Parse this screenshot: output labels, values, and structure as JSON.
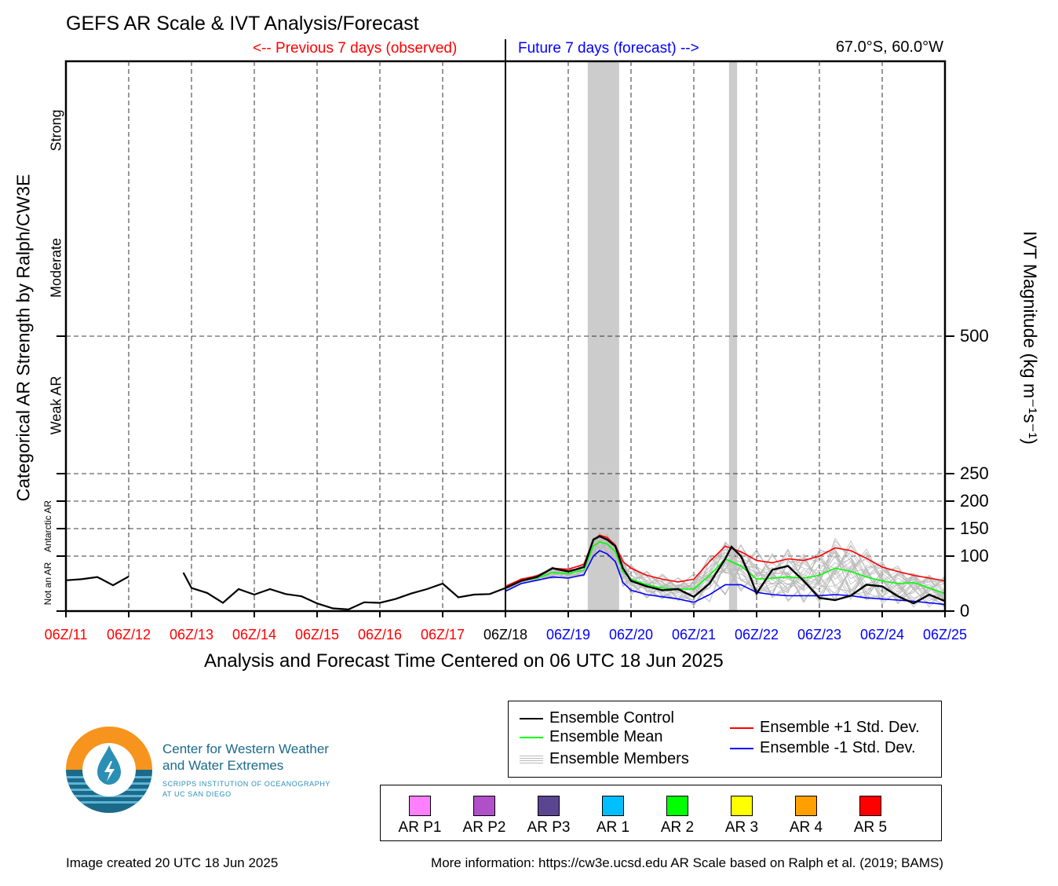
{
  "title": "GEFS AR Scale & IVT Analysis/Forecast",
  "previous_label": "<-- Previous 7 days (observed)",
  "future_label": "Future 7 days (forecast) -->",
  "location": "67.0°S, 60.0°W",
  "colors": {
    "observed": "#ff0000",
    "forecast": "#0000ff",
    "control": "#000000",
    "mean": "#00ff00",
    "plus_std": "#ff0000",
    "minus_std": "#0000ff",
    "members": "#bbbbbb",
    "ar_shading": "#cccccc",
    "brand_orange": "#f7941d",
    "brand_blue": "#1b6a8a"
  },
  "chart_data": {
    "type": "line",
    "xlabel": "Analysis and Forecast Time Centered on 06 UTC 18 Jun 2025",
    "ylabel_left": "Categorical AR Strength by Ralph/CW3E",
    "ylabel_right": "IVT Magnitude (kg m⁻¹s⁻¹)",
    "x_units": "days relative to 06Z/11",
    "xlim": [
      0,
      14
    ],
    "ylim": [
      0,
      1000
    ],
    "grid": true,
    "x_ticks": [
      {
        "label": "06Z/11",
        "x": 0,
        "color": "#ff0000"
      },
      {
        "label": "06Z/12",
        "x": 1,
        "color": "#ff0000"
      },
      {
        "label": "06Z/13",
        "x": 2,
        "color": "#ff0000"
      },
      {
        "label": "06Z/14",
        "x": 3,
        "color": "#ff0000"
      },
      {
        "label": "06Z/15",
        "x": 4,
        "color": "#ff0000"
      },
      {
        "label": "06Z/16",
        "x": 5,
        "color": "#ff0000"
      },
      {
        "label": "06Z/17",
        "x": 6,
        "color": "#ff0000"
      },
      {
        "label": "06Z/18",
        "x": 7,
        "color": "#000000"
      },
      {
        "label": "06Z/19",
        "x": 8,
        "color": "#0000ff"
      },
      {
        "label": "06Z/20",
        "x": 9,
        "color": "#0000ff"
      },
      {
        "label": "06Z/21",
        "x": 10,
        "color": "#0000ff"
      },
      {
        "label": "06Z/22",
        "x": 11,
        "color": "#0000ff"
      },
      {
        "label": "06Z/23",
        "x": 12,
        "color": "#0000ff"
      },
      {
        "label": "06Z/24",
        "x": 13,
        "color": "#0000ff"
      },
      {
        "label": "06Z/25",
        "x": 14,
        "color": "#0000ff"
      }
    ],
    "y_ticks": [
      0,
      100,
      150,
      200,
      250,
      500
    ],
    "categories": [
      {
        "label": "Strong",
        "y": 875,
        "small": false
      },
      {
        "label": "Moderate",
        "y": 625,
        "small": false
      },
      {
        "label": "Weak AR",
        "y": 375,
        "small": false
      },
      {
        "label": "Antarctic AR",
        "y": 155,
        "small": true
      },
      {
        "label": "Not an AR",
        "y": 50,
        "small": true
      }
    ],
    "ar_periods": [
      [
        8.31,
        8.81
      ],
      [
        10.56,
        10.69
      ]
    ],
    "observed": [
      {
        "x": 0.0,
        "y": 56
      },
      {
        "x": 0.25,
        "y": 58
      },
      {
        "x": 0.5,
        "y": 62
      },
      {
        "x": 0.75,
        "y": 47
      },
      {
        "x": 1.0,
        "y": 63
      },
      {
        "x": 1.87,
        "y": 70
      },
      {
        "x": 2.0,
        "y": 42
      },
      {
        "x": 2.25,
        "y": 33
      },
      {
        "x": 2.5,
        "y": 15
      },
      {
        "x": 2.75,
        "y": 40
      },
      {
        "x": 3.0,
        "y": 30
      },
      {
        "x": 3.25,
        "y": 40
      },
      {
        "x": 3.5,
        "y": 31
      },
      {
        "x": 3.75,
        "y": 27
      },
      {
        "x": 4.0,
        "y": 14
      },
      {
        "x": 4.25,
        "y": 5
      },
      {
        "x": 4.5,
        "y": 3
      },
      {
        "x": 4.75,
        "y": 16
      },
      {
        "x": 5.0,
        "y": 15
      },
      {
        "x": 5.25,
        "y": 22
      },
      {
        "x": 5.5,
        "y": 32
      },
      {
        "x": 5.75,
        "y": 40
      },
      {
        "x": 6.0,
        "y": 50
      },
      {
        "x": 6.25,
        "y": 25
      },
      {
        "x": 6.5,
        "y": 30
      },
      {
        "x": 6.75,
        "y": 31
      },
      {
        "x": 7.0,
        "y": 42
      }
    ],
    "series": [
      {
        "name": "Ensemble Control",
        "key": "control",
        "x": [
          7.0,
          7.25,
          7.5,
          7.75,
          8.0,
          8.25,
          8.4,
          8.5,
          8.62,
          8.75,
          8.87,
          9.0,
          9.25,
          9.5,
          9.75,
          10.0,
          10.25,
          10.5,
          10.6,
          10.75,
          10.9,
          11.0,
          11.25,
          11.5,
          11.75,
          12.0,
          12.25,
          12.5,
          12.75,
          13.0,
          13.25,
          13.5,
          13.75,
          14.0
        ],
        "y": [
          42,
          55,
          62,
          78,
          72,
          80,
          130,
          136,
          130,
          118,
          78,
          55,
          45,
          38,
          40,
          26,
          50,
          95,
          117,
          100,
          62,
          32,
          75,
          82,
          55,
          24,
          20,
          28,
          48,
          45,
          27,
          14,
          30,
          18
        ]
      },
      {
        "name": "Ensemble Mean",
        "key": "mean",
        "x": [
          7.0,
          7.25,
          7.5,
          7.75,
          8.0,
          8.25,
          8.4,
          8.5,
          8.62,
          8.75,
          8.87,
          9.0,
          9.25,
          9.5,
          9.75,
          10.0,
          10.25,
          10.5,
          10.75,
          11.0,
          11.25,
          11.5,
          11.75,
          12.0,
          12.25,
          12.5,
          12.75,
          13.0,
          13.25,
          13.5,
          13.75,
          14.0
        ],
        "y": [
          42,
          55,
          60,
          70,
          68,
          75,
          118,
          126,
          122,
          108,
          72,
          58,
          48,
          42,
          40,
          40,
          65,
          95,
          82,
          58,
          60,
          62,
          60,
          65,
          78,
          72,
          62,
          55,
          50,
          52,
          42,
          32
        ]
      },
      {
        "name": "Ensemble +1 Std. Dev.",
        "key": "plus_std",
        "x": [
          7.0,
          7.25,
          7.5,
          7.75,
          8.0,
          8.25,
          8.4,
          8.5,
          8.62,
          8.75,
          8.87,
          9.0,
          9.25,
          9.5,
          9.75,
          10.0,
          10.25,
          10.5,
          10.75,
          11.0,
          11.25,
          11.5,
          11.75,
          12.0,
          12.25,
          12.5,
          12.75,
          13.0,
          13.25,
          13.5,
          13.75,
          14.0
        ],
        "y": [
          45,
          58,
          64,
          78,
          76,
          85,
          130,
          138,
          134,
          120,
          90,
          78,
          65,
          58,
          53,
          58,
          90,
          118,
          108,
          92,
          88,
          95,
          92,
          100,
          115,
          110,
          96,
          80,
          72,
          65,
          60,
          55
        ]
      },
      {
        "name": "Ensemble -1 Std. Dev.",
        "key": "minus_std",
        "x": [
          7.0,
          7.25,
          7.5,
          7.75,
          8.0,
          8.25,
          8.4,
          8.5,
          8.62,
          8.75,
          8.87,
          9.0,
          9.25,
          9.5,
          9.75,
          10.0,
          10.25,
          10.5,
          10.75,
          11.0,
          11.25,
          11.5,
          11.75,
          12.0,
          12.25,
          12.5,
          12.75,
          13.0,
          13.25,
          13.5,
          13.75,
          14.0
        ],
        "y": [
          36,
          50,
          56,
          62,
          60,
          66,
          100,
          110,
          104,
          90,
          52,
          38,
          30,
          26,
          22,
          16,
          30,
          48,
          48,
          34,
          30,
          28,
          28,
          28,
          30,
          28,
          24,
          22,
          20,
          18,
          15,
          12
        ]
      }
    ]
  },
  "legend": {
    "control": "Ensemble Control",
    "mean": "Ensemble Mean",
    "members": "Ensemble Members",
    "plus_std": "Ensemble +1 Std. Dev.",
    "minus_std": "Ensemble -1 Std. Dev."
  },
  "ar_scale": [
    {
      "label": "AR P1",
      "color": "#ff80ff"
    },
    {
      "label": "AR P2",
      "color": "#b050c8"
    },
    {
      "label": "AR P3",
      "color": "#5a4690"
    },
    {
      "label": "AR 1",
      "color": "#00bfff"
    },
    {
      "label": "AR 2",
      "color": "#00ff00"
    },
    {
      "label": "AR 3",
      "color": "#ffff00"
    },
    {
      "label": "AR 4",
      "color": "#ffa000"
    },
    {
      "label": "AR 5",
      "color": "#ff0000"
    }
  ],
  "org": {
    "line1": "Center for Western Weather",
    "line2": "and Water Extremes",
    "line3": "SCRIPPS INSTITUTION OF OCEANOGRAPHY",
    "line4": "AT UC SAN DIEGO"
  },
  "footer": {
    "created": "Image created 20 UTC 18 Jun 2025",
    "more_info": "More information: https://cw3e.ucsd.edu AR Scale based on Ralph et al. (2019; BAMS)"
  }
}
